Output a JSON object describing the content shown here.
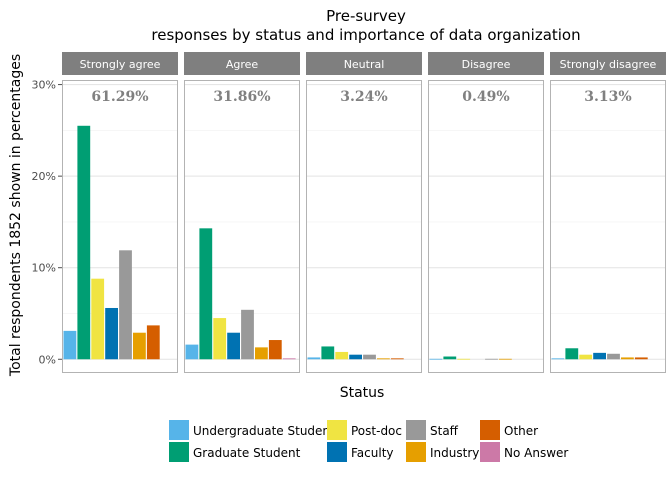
{
  "chart_data": {
    "type": "bar",
    "title": "Pre-survey",
    "subtitle": "responses by status and importance of data organization",
    "xlabel": "Status",
    "ylabel": "Total respondents 1852 shown in percentages",
    "ylim": [
      -1.5,
      30.5
    ],
    "yticks": [
      0,
      10,
      20,
      30
    ],
    "ytick_labels": [
      "0%",
      "10%",
      "20%",
      "30%"
    ],
    "grid": true,
    "legend_position": "bottom",
    "categories": [
      "Undergraduate Student",
      "Graduate Student",
      "Post-doc",
      "Faculty",
      "Staff",
      "Industry",
      "Other",
      "No Answer"
    ],
    "panels": [
      {
        "name": "Strongly agree",
        "total": "61.29%",
        "values": [
          3.1,
          25.5,
          8.8,
          5.6,
          11.9,
          2.9,
          3.7,
          0
        ]
      },
      {
        "name": "Agree",
        "total": "31.86%",
        "values": [
          1.6,
          14.3,
          4.5,
          2.9,
          5.4,
          1.3,
          2.1,
          0.1
        ]
      },
      {
        "name": "Neutral",
        "total": "3.24%",
        "values": [
          0.2,
          1.4,
          0.8,
          0.5,
          0.5,
          0.1,
          0.1,
          0
        ]
      },
      {
        "name": "Disagree",
        "total": "0.49%",
        "values": [
          0.05,
          0.3,
          0.05,
          0,
          0.05,
          0.05,
          0,
          0
        ]
      },
      {
        "name": "Strongly disagree",
        "total": "3.13%",
        "values": [
          0.1,
          1.2,
          0.5,
          0.7,
          0.6,
          0.2,
          0.2,
          0
        ]
      }
    ],
    "series": [
      {
        "name": "Undergraduate Student",
        "color": "#56B4E9"
      },
      {
        "name": "Graduate Student",
        "color": "#009E73"
      },
      {
        "name": "Post-doc",
        "color": "#F0E442"
      },
      {
        "name": "Faculty",
        "color": "#0072B2"
      },
      {
        "name": "Staff",
        "color": "#999999"
      },
      {
        "name": "Industry",
        "color": "#E69F00"
      },
      {
        "name": "Other",
        "color": "#D55E00"
      },
      {
        "name": "No Answer",
        "color": "#CC79A7"
      }
    ]
  }
}
